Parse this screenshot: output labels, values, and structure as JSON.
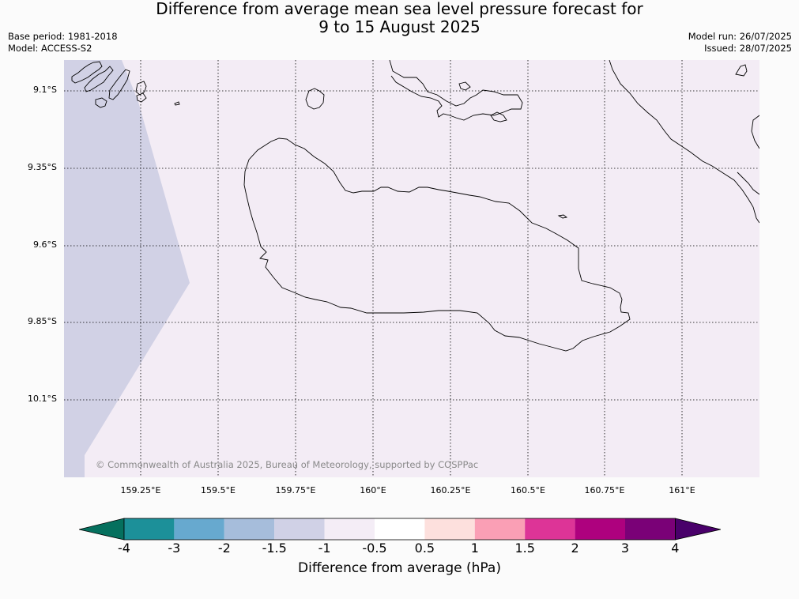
{
  "title": {
    "line1": "Difference from average mean sea level pressure forecast for",
    "line2": "9 to 15 August 2025"
  },
  "meta": {
    "base_period": "Base period: 1981-2018",
    "model": "Model: ACCESS-S2",
    "model_run": "Model run: 26/07/2025",
    "issued": "Issued: 28/07/2025"
  },
  "map": {
    "lat_labels": [
      "9.1°S",
      "9.35°S",
      "9.6°S",
      "9.85°S",
      "10.1°S"
    ],
    "lon_labels": [
      "159.25°E",
      "159.5°E",
      "159.75°E",
      "160°E",
      "160.25°E",
      "160.5°E",
      "160.75°E",
      "161°E"
    ],
    "copyright": "© Commonwealth of Australia 2025, Bureau of Meteorology, supported by COSPPac",
    "colors": {
      "background_band": "#f3ecf5",
      "low_band": "#d1d1e5",
      "coastline": "#000000",
      "gridline": "#000000"
    }
  },
  "colorbar": {
    "tick_labels": [
      "-4",
      "-3",
      "-2",
      "-1.5",
      "-1",
      "-0.5",
      "0.5",
      "1",
      "1.5",
      "2",
      "3",
      "4"
    ],
    "colors": [
      "#05705e",
      "#1c9099",
      "#67a9cf",
      "#a6bddb",
      "#d0d1e6",
      "#f4edf6",
      "#ffffff",
      "#fde0dd",
      "#fa9fb5",
      "#dd3497",
      "#ae017e",
      "#7a0177",
      "#49006a"
    ],
    "label": "Difference from average (hPa)"
  }
}
